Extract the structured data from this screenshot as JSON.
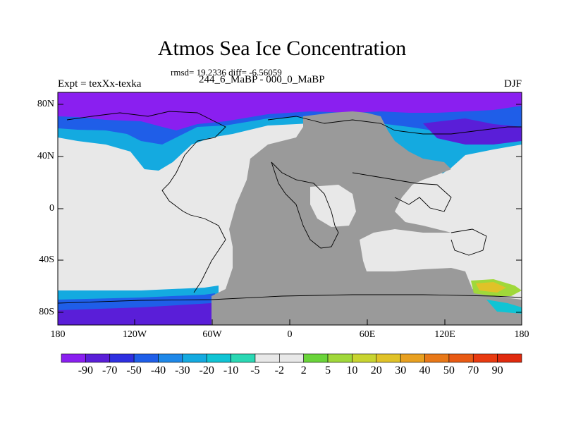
{
  "title": "Atmos Sea Ice Concentration",
  "stats": "rmsd= 19.2336 diff= -6.56059",
  "experiment": "Expt = texXx-texka",
  "subtitle": "244_6_MaBP - 000_0_MaBP",
  "season": "DJF",
  "lat_labels": [
    "80N",
    "40N",
    "0",
    "40S",
    "80S"
  ],
  "lon_labels": [
    "180",
    "120W",
    "60W",
    "0",
    "60E",
    "120E",
    "180"
  ],
  "colorbar": {
    "labels": [
      "-90",
      "-70",
      "-50",
      "-40",
      "-30",
      "-20",
      "-10",
      "-5",
      "-2",
      "2",
      "5",
      "10",
      "20",
      "30",
      "40",
      "50",
      "70",
      "90"
    ],
    "colors": [
      "#8a1ff0",
      "#5a1ed8",
      "#2e2fe0",
      "#1f5ee8",
      "#1e88e8",
      "#14aae0",
      "#10c4d4",
      "#2ad8b4",
      "#e8e8e8",
      "#e8e8e8",
      "#6ad43a",
      "#a0d83a",
      "#c8d430",
      "#e0c228",
      "#e8a020",
      "#e87818",
      "#e85a14",
      "#e83a10",
      "#e02a0e"
    ]
  },
  "map": {
    "land_color": "#9a9a9a",
    "no_change_color": "#e8e8e8"
  }
}
